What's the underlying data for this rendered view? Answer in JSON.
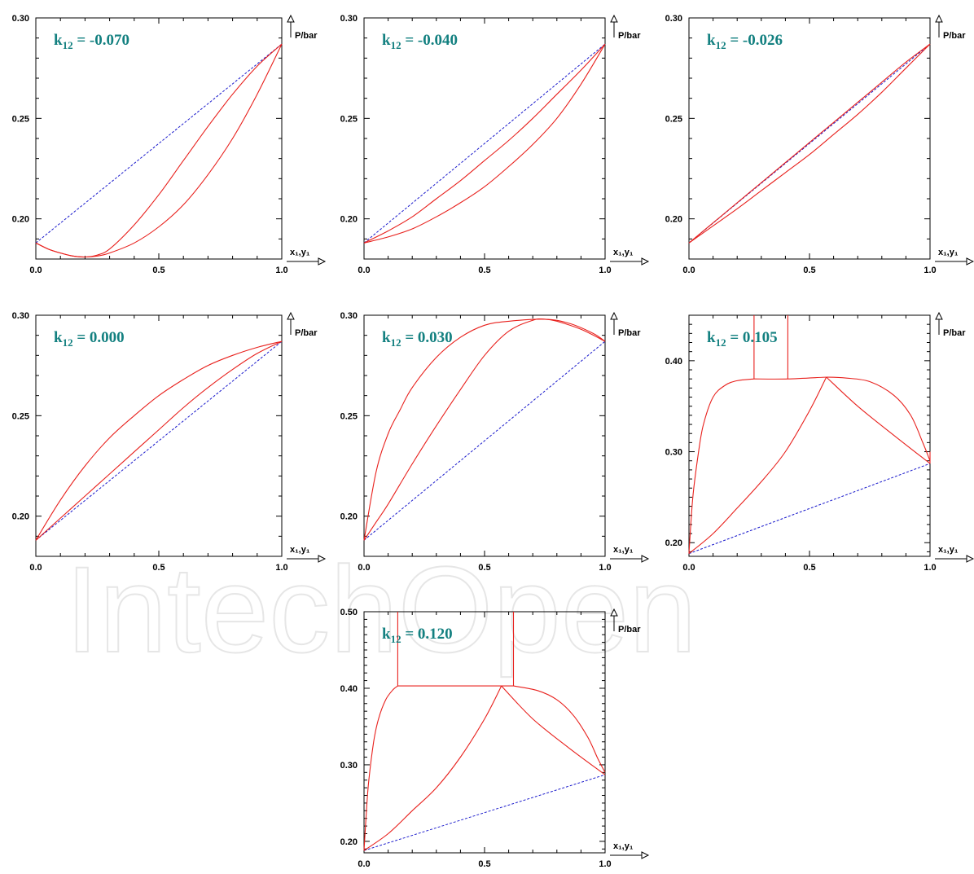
{
  "watermark": "IntechOpen",
  "colors": {
    "curve": "#e8201c",
    "ideal": "#1a1acc",
    "label": "#138080",
    "axis": "#000000"
  },
  "chart_data": [
    {
      "type": "line",
      "k_text": "-0.070",
      "xlabel": "x₁,y₁",
      "ylabel": "P/bar",
      "xlim": [
        0,
        1
      ],
      "ylim": [
        0.18,
        0.3
      ],
      "xticks": [
        "0.0",
        "0.5",
        "1.0"
      ],
      "yticks": [
        {
          "v": 0.2,
          "t": "0.20"
        },
        {
          "v": 0.25,
          "t": "0.25"
        },
        {
          "v": 0.3,
          "t": "0.30"
        }
      ],
      "ideal": [
        [
          0,
          0.188
        ],
        [
          1,
          0.287
        ]
      ],
      "series": [
        {
          "points": [
            [
              0,
              0.188
            ],
            [
              0.05,
              0.185
            ],
            [
              0.1,
              0.183
            ],
            [
              0.15,
              0.1815
            ],
            [
              0.2,
              0.181
            ],
            [
              0.25,
              0.1815
            ],
            [
              0.3,
              0.183
            ],
            [
              0.4,
              0.188
            ],
            [
              0.5,
              0.196
            ],
            [
              0.6,
              0.207
            ],
            [
              0.7,
              0.222
            ],
            [
              0.8,
              0.24
            ],
            [
              0.9,
              0.262
            ],
            [
              1.0,
              0.287
            ]
          ]
        },
        {
          "points": [
            [
              0,
              0.188
            ],
            [
              0.05,
              0.185
            ],
            [
              0.1,
              0.183
            ],
            [
              0.15,
              0.1815
            ],
            [
              0.2,
              0.181
            ],
            [
              0.25,
              0.182
            ],
            [
              0.3,
              0.185
            ],
            [
              0.4,
              0.197
            ],
            [
              0.5,
              0.212
            ],
            [
              0.6,
              0.229
            ],
            [
              0.7,
              0.246
            ],
            [
              0.8,
              0.262
            ],
            [
              0.9,
              0.276
            ],
            [
              1.0,
              0.287
            ]
          ]
        }
      ]
    },
    {
      "type": "line",
      "k_text": "-0.040",
      "xlabel": "x₁,y₁",
      "ylabel": "P/bar",
      "xlim": [
        0,
        1
      ],
      "ylim": [
        0.18,
        0.3
      ],
      "xticks": [
        "0.0",
        "0.5",
        "1.0"
      ],
      "yticks": [
        {
          "v": 0.2,
          "t": "0.20"
        },
        {
          "v": 0.25,
          "t": "0.25"
        },
        {
          "v": 0.3,
          "t": "0.30"
        }
      ],
      "ideal": [
        [
          0,
          0.188
        ],
        [
          1,
          0.287
        ]
      ],
      "series": [
        {
          "points": [
            [
              0,
              0.188
            ],
            [
              0.1,
              0.191
            ],
            [
              0.2,
              0.195
            ],
            [
              0.3,
              0.201
            ],
            [
              0.4,
              0.208
            ],
            [
              0.5,
              0.216
            ],
            [
              0.6,
              0.226
            ],
            [
              0.7,
              0.237
            ],
            [
              0.8,
              0.25
            ],
            [
              0.9,
              0.267
            ],
            [
              1.0,
              0.287
            ]
          ]
        },
        {
          "points": [
            [
              0,
              0.188
            ],
            [
              0.1,
              0.194
            ],
            [
              0.2,
              0.201
            ],
            [
              0.3,
              0.21
            ],
            [
              0.4,
              0.219
            ],
            [
              0.5,
              0.229
            ],
            [
              0.6,
              0.239
            ],
            [
              0.7,
              0.25
            ],
            [
              0.8,
              0.262
            ],
            [
              0.9,
              0.274
            ],
            [
              1.0,
              0.287
            ]
          ]
        }
      ]
    },
    {
      "type": "line",
      "k_text": "-0.026",
      "xlabel": "x₁,y₁",
      "ylabel": "P/bar",
      "xlim": [
        0,
        1
      ],
      "ylim": [
        0.18,
        0.3
      ],
      "xticks": [
        "0.0",
        "0.5",
        "1.0"
      ],
      "yticks": [
        {
          "v": 0.2,
          "t": "0.20"
        },
        {
          "v": 0.25,
          "t": "0.25"
        },
        {
          "v": 0.3,
          "t": "0.30"
        }
      ],
      "ideal": [
        [
          0,
          0.188
        ],
        [
          1,
          0.287
        ]
      ],
      "series": [
        {
          "points": [
            [
              0,
              0.188
            ],
            [
              0.1,
              0.1965
            ],
            [
              0.2,
              0.205
            ],
            [
              0.3,
              0.214
            ],
            [
              0.4,
              0.223
            ],
            [
              0.5,
              0.232
            ],
            [
              0.6,
              0.242
            ],
            [
              0.7,
              0.252
            ],
            [
              0.8,
              0.263
            ],
            [
              0.9,
              0.275
            ],
            [
              1.0,
              0.287
            ]
          ]
        },
        {
          "points": [
            [
              0,
              0.188
            ],
            [
              0.1,
              0.198
            ],
            [
              0.2,
              0.208
            ],
            [
              0.3,
              0.218
            ],
            [
              0.4,
              0.228
            ],
            [
              0.5,
              0.238
            ],
            [
              0.6,
              0.248
            ],
            [
              0.7,
              0.258
            ],
            [
              0.8,
              0.268
            ],
            [
              0.9,
              0.278
            ],
            [
              1.0,
              0.287
            ]
          ]
        }
      ]
    },
    {
      "type": "line",
      "k_text": "0.000",
      "xlabel": "x₁,y₁",
      "ylabel": "P/bar",
      "xlim": [
        0,
        1
      ],
      "ylim": [
        0.18,
        0.3
      ],
      "xticks": [
        "0.0",
        "0.5",
        "1.0"
      ],
      "yticks": [
        {
          "v": 0.2,
          "t": "0.20"
        },
        {
          "v": 0.25,
          "t": "0.25"
        },
        {
          "v": 0.3,
          "t": "0.30"
        }
      ],
      "ideal": [
        [
          0,
          0.188
        ],
        [
          1,
          0.287
        ]
      ],
      "series": [
        {
          "points": [
            [
              0,
              0.188
            ],
            [
              0.1,
              0.199
            ],
            [
              0.2,
              0.21
            ],
            [
              0.3,
              0.221
            ],
            [
              0.4,
              0.232
            ],
            [
              0.5,
              0.243
            ],
            [
              0.6,
              0.254
            ],
            [
              0.7,
              0.264
            ],
            [
              0.8,
              0.273
            ],
            [
              0.9,
              0.281
            ],
            [
              1.0,
              0.287
            ]
          ]
        },
        {
          "points": [
            [
              0,
              0.188
            ],
            [
              0.1,
              0.208
            ],
            [
              0.2,
              0.225
            ],
            [
              0.3,
              0.239
            ],
            [
              0.4,
              0.25
            ],
            [
              0.5,
              0.26
            ],
            [
              0.6,
              0.268
            ],
            [
              0.7,
              0.275
            ],
            [
              0.8,
              0.28
            ],
            [
              0.9,
              0.284
            ],
            [
              1.0,
              0.287
            ]
          ]
        }
      ]
    },
    {
      "type": "line",
      "k_text": "0.030",
      "xlabel": "x₁,y₁",
      "ylabel": "P/bar",
      "xlim": [
        0,
        1
      ],
      "ylim": [
        0.18,
        0.3
      ],
      "xticks": [
        "0.0",
        "0.5",
        "1.0"
      ],
      "yticks": [
        {
          "v": 0.2,
          "t": "0.20"
        },
        {
          "v": 0.25,
          "t": "0.25"
        },
        {
          "v": 0.3,
          "t": "0.30"
        }
      ],
      "ideal": [
        [
          0,
          0.188
        ],
        [
          1,
          0.287
        ]
      ],
      "series": [
        {
          "points": [
            [
              0,
              0.188
            ],
            [
              0.05,
              0.197
            ],
            [
              0.1,
              0.206
            ],
            [
              0.2,
              0.226
            ],
            [
              0.3,
              0.245
            ],
            [
              0.4,
              0.263
            ],
            [
              0.5,
              0.28
            ],
            [
              0.6,
              0.292
            ],
            [
              0.7,
              0.2975
            ],
            [
              0.75,
              0.298
            ],
            [
              0.8,
              0.297
            ],
            [
              0.9,
              0.293
            ],
            [
              1.0,
              0.287
            ]
          ]
        },
        {
          "points": [
            [
              0,
              0.188
            ],
            [
              0.05,
              0.222
            ],
            [
              0.1,
              0.241
            ],
            [
              0.15,
              0.253
            ],
            [
              0.2,
              0.264
            ],
            [
              0.3,
              0.279
            ],
            [
              0.4,
              0.289
            ],
            [
              0.5,
              0.295
            ],
            [
              0.6,
              0.297
            ],
            [
              0.75,
              0.298
            ],
            [
              0.85,
              0.296
            ],
            [
              0.95,
              0.291
            ],
            [
              1.0,
              0.287
            ]
          ]
        }
      ]
    },
    {
      "type": "line",
      "k_text": "0.105",
      "xlabel": "x₁,y₁",
      "ylabel": "P/bar",
      "xlim": [
        0,
        1
      ],
      "ylim": [
        0.185,
        0.45
      ],
      "xticks": [
        "0.0",
        "0.5",
        "1.0"
      ],
      "yticks": [
        {
          "v": 0.2,
          "t": "0.20"
        },
        {
          "v": 0.3,
          "t": "0.30"
        },
        {
          "v": 0.4,
          "t": "0.40"
        }
      ],
      "ideal": [
        [
          0,
          0.188
        ],
        [
          1,
          0.287
        ]
      ],
      "series": [
        {
          "points": [
            [
              0,
              0.188
            ],
            [
              0.01,
              0.23
            ],
            [
              0.02,
              0.26
            ],
            [
              0.04,
              0.3
            ],
            [
              0.06,
              0.33
            ],
            [
              0.1,
              0.36
            ],
            [
              0.15,
              0.373
            ],
            [
              0.2,
              0.378
            ],
            [
              0.27,
              0.38
            ]
          ]
        },
        {
          "points": [
            [
              0,
              0.188
            ],
            [
              0.1,
              0.21
            ],
            [
              0.2,
              0.238
            ],
            [
              0.3,
              0.267
            ],
            [
              0.4,
              0.3
            ],
            [
              0.5,
              0.345
            ],
            [
              0.57,
              0.382
            ]
          ]
        },
        {
          "points": [
            [
              0.27,
              0.38
            ],
            [
              0.41,
              0.38
            ],
            [
              0.57,
              0.382
            ]
          ]
        },
        {
          "points": [
            [
              0.27,
              0.45
            ],
            [
              0.27,
              0.38
            ]
          ]
        },
        {
          "points": [
            [
              0.41,
              0.45
            ],
            [
              0.41,
              0.38
            ]
          ]
        },
        {
          "points": [
            [
              0.57,
              0.382
            ],
            [
              0.65,
              0.381
            ],
            [
              0.75,
              0.377
            ],
            [
              0.85,
              0.362
            ],
            [
              0.92,
              0.34
            ],
            [
              0.97,
              0.31
            ],
            [
              1.0,
              0.29
            ]
          ]
        },
        {
          "points": [
            [
              0.57,
              0.382
            ],
            [
              0.7,
              0.35
            ],
            [
              0.85,
              0.318
            ],
            [
              1.0,
              0.287
            ]
          ]
        },
        {
          "points": [
            [
              1.0,
              0.287
            ],
            [
              1.0,
              0.3
            ]
          ]
        }
      ]
    },
    {
      "type": "line",
      "k_text": "0.120",
      "xlabel": "x₁,y₁",
      "ylabel": "P/bar",
      "xlim": [
        0,
        1
      ],
      "ylim": [
        0.185,
        0.5
      ],
      "xticks": [
        "0.0",
        "0.5",
        "1.0"
      ],
      "yticks": [
        {
          "v": 0.2,
          "t": "0.20"
        },
        {
          "v": 0.3,
          "t": "0.30"
        },
        {
          "v": 0.4,
          "t": "0.40"
        },
        {
          "v": 0.5,
          "t": "0.50"
        }
      ],
      "ideal": [
        [
          0,
          0.188
        ],
        [
          1,
          0.287
        ]
      ],
      "series": [
        {
          "points": [
            [
              0,
              0.188
            ],
            [
              0.01,
              0.24
            ],
            [
              0.02,
              0.28
            ],
            [
              0.04,
              0.33
            ],
            [
              0.06,
              0.36
            ],
            [
              0.09,
              0.385
            ],
            [
              0.12,
              0.398
            ],
            [
              0.14,
              0.403
            ]
          ]
        },
        {
          "points": [
            [
              0,
              0.188
            ],
            [
              0.1,
              0.21
            ],
            [
              0.2,
              0.24
            ],
            [
              0.3,
              0.27
            ],
            [
              0.4,
              0.31
            ],
            [
              0.5,
              0.36
            ],
            [
              0.57,
              0.403
            ]
          ]
        },
        {
          "points": [
            [
              0.14,
              0.403
            ],
            [
              0.62,
              0.403
            ]
          ]
        },
        {
          "points": [
            [
              0.14,
              0.5
            ],
            [
              0.14,
              0.403
            ]
          ]
        },
        {
          "points": [
            [
              0.62,
              0.5
            ],
            [
              0.62,
              0.403
            ]
          ]
        },
        {
          "points": [
            [
              0.62,
              0.403
            ],
            [
              0.72,
              0.397
            ],
            [
              0.8,
              0.385
            ],
            [
              0.87,
              0.364
            ],
            [
              0.93,
              0.335
            ],
            [
              0.97,
              0.308
            ],
            [
              1.0,
              0.29
            ]
          ]
        },
        {
          "points": [
            [
              0.57,
              0.403
            ],
            [
              0.7,
              0.36
            ],
            [
              0.85,
              0.322
            ],
            [
              1.0,
              0.287
            ]
          ]
        }
      ]
    }
  ]
}
